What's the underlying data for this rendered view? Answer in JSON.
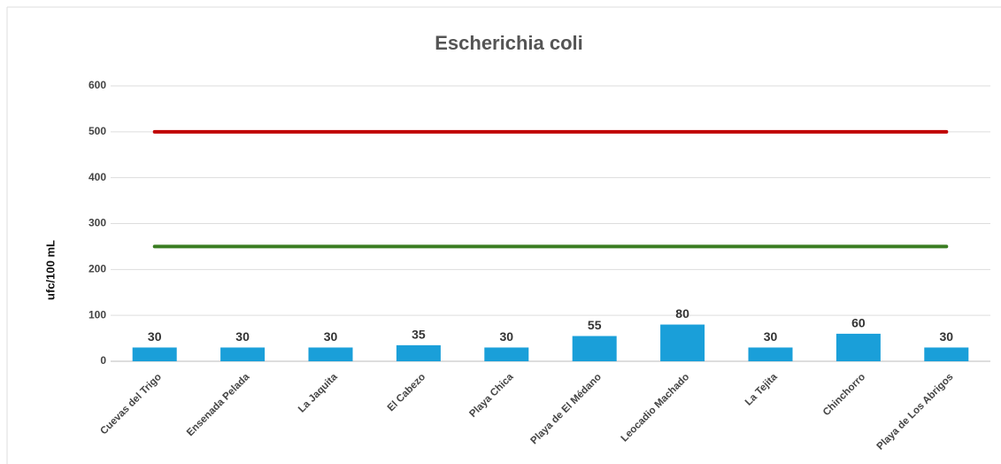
{
  "chart_data": {
    "type": "bar",
    "title": "Escherichia coli",
    "y_label": "ufc/100 mL",
    "categories": [
      "Cuevas del Trigo",
      "Ensenada Pelada",
      "La Jaquita",
      "El Cabezo",
      "Playa Chica",
      "Playa de El Médano",
      "Leocadio Machado",
      "La Tejita",
      "Chinchorro",
      "Playa de Los Abrigos"
    ],
    "values": [
      30,
      30,
      30,
      35,
      30,
      55,
      80,
      30,
      60,
      30
    ],
    "color": "#1a9fd9",
    "reference_lines": [
      {
        "value": 500,
        "color": "#c00000"
      },
      {
        "value": 250,
        "color": "#3a7d22"
      }
    ],
    "ylim": [
      0,
      600
    ],
    "yticks": [
      0,
      100,
      200,
      300,
      400,
      500,
      600
    ],
    "grid": true
  }
}
